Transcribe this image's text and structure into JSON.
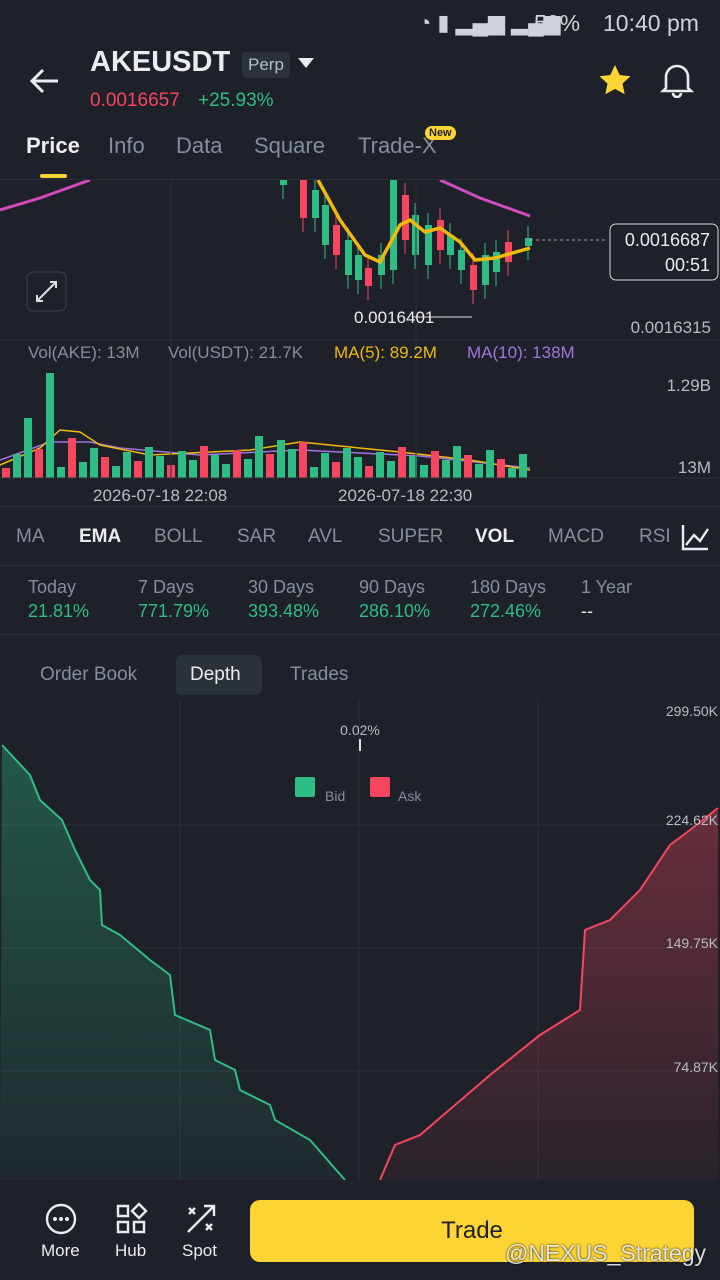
{
  "status": {
    "battery": "59%",
    "time": "10:40 pm"
  },
  "header": {
    "symbol": "AKEUSDT",
    "badge": "Perp",
    "price": "0.0016657",
    "change": "+25.93%"
  },
  "tabs": {
    "items": [
      "Price",
      "Info",
      "Data",
      "Square",
      "Trade-X"
    ],
    "new_badge": "New"
  },
  "price_chart": {
    "last_price": "0.0016687",
    "countdown": "00:51",
    "low_marker": "0.0016401",
    "axis_low": "0.0016315"
  },
  "volume": {
    "labels": [
      "Vol(AKE): 13M",
      "Vol(USDT): 21.7K",
      "MA(5): 89.2M",
      "MA(10): 138M"
    ],
    "axis_top": "1.29B",
    "axis_bottom": "13M",
    "dates": [
      "2026-07-18 22:08",
      "2026-07-18 22:30"
    ]
  },
  "indicators": [
    "MA",
    "EMA",
    "BOLL",
    "SAR",
    "AVL",
    "SUPER",
    "VOL",
    "MACD",
    "RSI"
  ],
  "performance": [
    {
      "label": "Today",
      "value": "21.81%"
    },
    {
      "label": "7 Days",
      "value": "771.79%"
    },
    {
      "label": "30 Days",
      "value": "393.48%"
    },
    {
      "label": "90 Days",
      "value": "286.10%"
    },
    {
      "label": "180 Days",
      "value": "272.46%"
    },
    {
      "label": "1 Year",
      "value": "--"
    }
  ],
  "book_tabs": [
    "Order Book",
    "Depth",
    "Trades"
  ],
  "depth": {
    "center_label": "0.02%",
    "legend": [
      "Bid",
      "Ask"
    ],
    "axis_labels": [
      "299.50K",
      "224.62K",
      "149.75K",
      "74.87K"
    ]
  },
  "nav": {
    "items": [
      "More",
      "Hub",
      "Spot"
    ],
    "trade": "Trade"
  },
  "watermark": "@NEXUS_Strategy"
}
